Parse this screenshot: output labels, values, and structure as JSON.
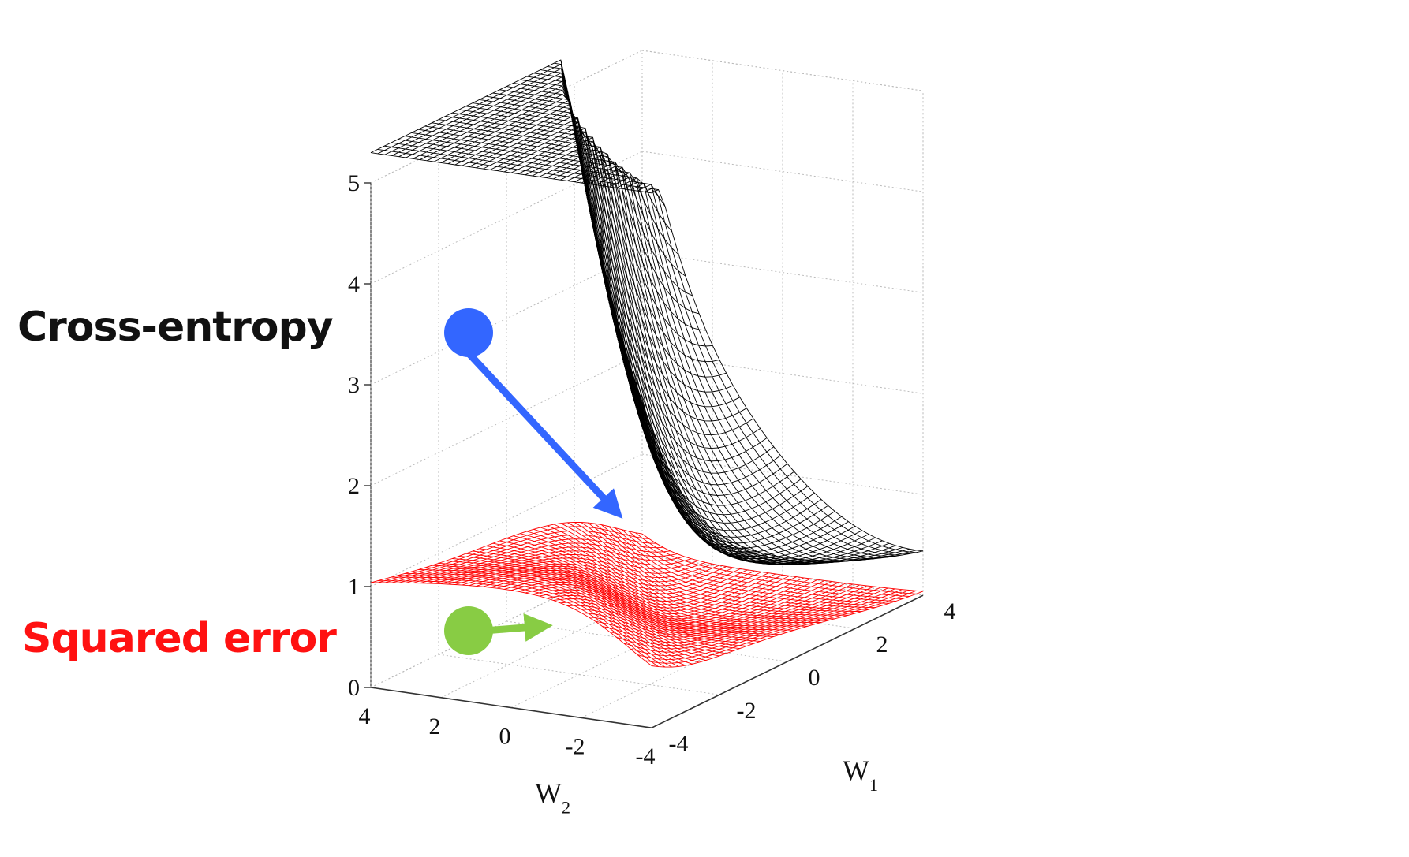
{
  "chart_data": {
    "type": "surface3d",
    "title": "",
    "xlabel": "W",
    "xlabel_subscript": "1",
    "ylabel": "W",
    "ylabel_subscript": "2",
    "zlabel": "",
    "xlim": [
      -4,
      4
    ],
    "ylim": [
      -4,
      4
    ],
    "zlim": [
      0,
      5
    ],
    "x_ticks": [
      "-4",
      "-2",
      "0",
      "2",
      "4"
    ],
    "y_ticks": [
      "4",
      "2",
      "0",
      "-2",
      "-4"
    ],
    "z_ticks": [
      "0",
      "1",
      "2",
      "3",
      "4",
      "5"
    ],
    "grid": true,
    "series": [
      {
        "name": "Cross-entropy",
        "color": "#000000",
        "grid_size": 41,
        "surface": "cross-entropy loss of a logistic unit over weights (w1, w2)",
        "z_range": [
          0.1,
          5.3
        ]
      },
      {
        "name": "Squared error",
        "color": "#ff0000",
        "grid_size": 41,
        "surface": "squared-error loss of a logistic unit over weights (w1, w2)",
        "z_range": [
          0.0,
          1.0
        ]
      }
    ],
    "annotations": [
      {
        "type": "gradient-step",
        "series": "Cross-entropy",
        "color": "#3366ff",
        "from": [
          -3.6,
          3.6,
          3.3
        ],
        "to": [
          -3.6,
          1.2,
          1.4
        ]
      },
      {
        "type": "gradient-step",
        "series": "Squared error",
        "color": "#88cc44",
        "from": [
          -3.9,
          3.9,
          0.45
        ],
        "to": [
          -3.9,
          3.0,
          0.45
        ]
      }
    ]
  },
  "labels": {
    "cross_entropy": "Cross-entropy",
    "squared_error": "Squared error"
  },
  "colors": {
    "cross_entropy": "#111111",
    "squared_error": "#ff1111",
    "blue_arrow": "#3366ff",
    "green_arrow": "#88cc44"
  }
}
